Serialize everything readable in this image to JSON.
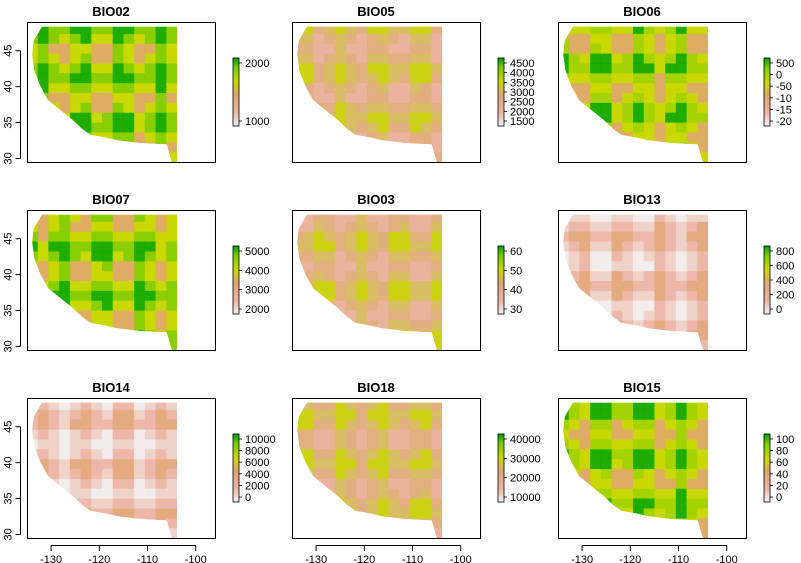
{
  "chart_data": [
    {
      "type": "heatmap",
      "title": "BIO02",
      "legend": [
        "2000",
        "1000"
      ],
      "style": "dark"
    },
    {
      "type": "heatmap",
      "title": "BIO05",
      "legend": [
        "4500",
        "4000",
        "3500",
        "3000",
        "2500",
        "2000",
        "1500"
      ],
      "style": "pink"
    },
    {
      "type": "heatmap",
      "title": "BIO06",
      "legend": [
        "500",
        "0",
        "-50",
        "-10",
        "-15",
        "-20"
      ],
      "style": "mid"
    },
    {
      "type": "heatmap",
      "title": "BIO07",
      "legend": [
        "5000",
        "4000",
        "3000",
        "2000"
      ],
      "style": "dark"
    },
    {
      "type": "heatmap",
      "title": "BIO03",
      "legend": [
        "60",
        "50",
        "40",
        "30"
      ],
      "style": "pink"
    },
    {
      "type": "heatmap",
      "title": "BIO13",
      "legend": [
        "800",
        "600",
        "400",
        "200",
        "0"
      ],
      "style": "pale"
    },
    {
      "type": "heatmap",
      "title": "BIO14",
      "legend": [
        "10000",
        "8000",
        "6000",
        "4000",
        "2000",
        "0"
      ],
      "style": "pale"
    },
    {
      "type": "heatmap",
      "title": "BIO18",
      "legend": [
        "40000",
        "30000",
        "20000",
        "10000"
      ],
      "style": "pink"
    },
    {
      "type": "heatmap",
      "title": "BIO15",
      "legend": [
        "100",
        "80",
        "60",
        "40",
        "20",
        "0"
      ],
      "style": "mid"
    }
  ],
  "axes": {
    "x_ticks": [
      "-130",
      "-120",
      "-110",
      "-100"
    ],
    "y_ticks": [
      "30",
      "35",
      "40",
      "45"
    ],
    "xlim": [
      -135,
      -96
    ],
    "ylim": [
      29.5,
      49
    ]
  },
  "colors": {
    "ramp": [
      "#f2f2f2",
      "#ecb3a3",
      "#e2a474",
      "#c8d800",
      "#7ccd00",
      "#00a600"
    ]
  }
}
